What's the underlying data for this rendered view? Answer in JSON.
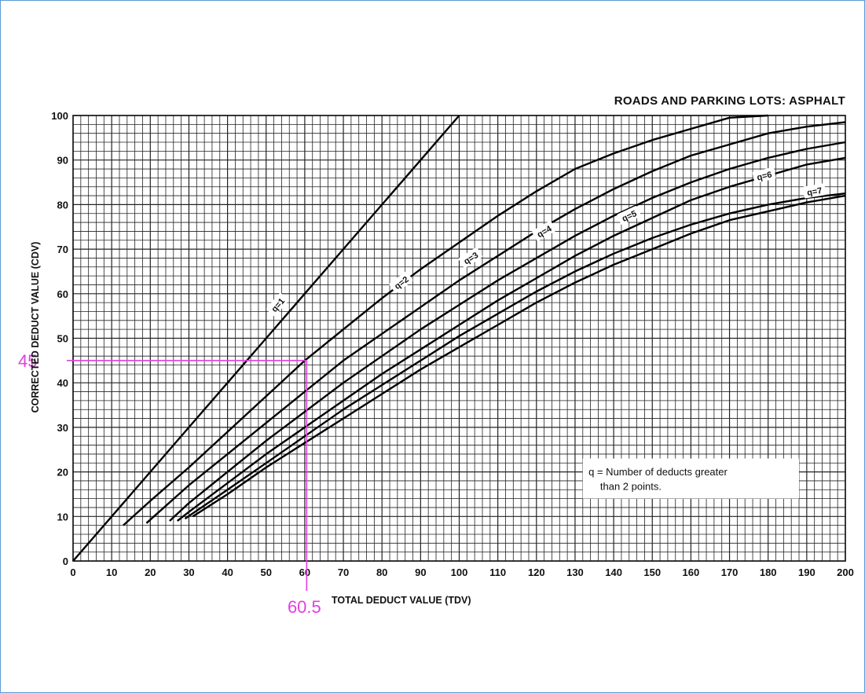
{
  "chart_data": {
    "type": "line",
    "title": "ROADS AND PARKING LOTS:  ASPHALT",
    "xlabel": "TOTAL DEDUCT VALUE (TDV)",
    "ylabel": "CORRECTED DEDUCT VALUE (CDV)",
    "xlim": [
      0,
      200
    ],
    "ylim": [
      0,
      100
    ],
    "xticks": [
      "0",
      "10",
      "20",
      "30",
      "40",
      "50",
      "60",
      "70",
      "80",
      "90",
      "100",
      "110",
      "120",
      "130",
      "140",
      "150",
      "160",
      "170",
      "180",
      "190",
      "200"
    ],
    "yticks": [
      "0",
      "10",
      "20",
      "30",
      "40",
      "50",
      "60",
      "70",
      "80",
      "90",
      "100"
    ],
    "grid": true,
    "legend": {
      "placement": "bottom-right",
      "line1": "q = Number of deducts greater",
      "line2": "than 2 points."
    },
    "series": [
      {
        "name": "q=1",
        "x": [
          0,
          10,
          20,
          30,
          40,
          50,
          60,
          70,
          80,
          90,
          100
        ],
        "y": [
          0,
          10,
          20,
          30,
          40,
          50,
          60,
          70,
          80,
          90,
          100
        ]
      },
      {
        "name": "q=2",
        "x": [
          13,
          20,
          30,
          40,
          50,
          60,
          70,
          80,
          90,
          100,
          110,
          120,
          130,
          140,
          150,
          160,
          170,
          180
        ],
        "y": [
          8,
          13.5,
          21,
          29,
          37,
          45,
          52,
          59,
          65.5,
          71.5,
          77.5,
          83,
          88,
          91.5,
          94.5,
          97,
          99.5,
          101.5
        ]
      },
      {
        "name": "q=3",
        "x": [
          19,
          30,
          40,
          50,
          60,
          70,
          80,
          90,
          100,
          110,
          120,
          130,
          140,
          150,
          160,
          170,
          180,
          190,
          200
        ],
        "y": [
          8.5,
          17,
          24,
          31,
          38,
          45,
          51,
          57,
          63,
          68.5,
          74,
          79,
          83.5,
          87.5,
          91,
          93.5,
          96,
          97.5,
          98.5
        ]
      },
      {
        "name": "q=4",
        "x": [
          25,
          30,
          40,
          50,
          60,
          70,
          80,
          90,
          100,
          110,
          120,
          130,
          140,
          150,
          160,
          170,
          180,
          190,
          200
        ],
        "y": [
          9,
          13,
          20,
          27,
          33.5,
          40,
          46,
          52,
          57.5,
          63,
          68,
          73,
          77.5,
          81.5,
          85,
          88,
          90.5,
          92.5,
          94
        ]
      },
      {
        "name": "q=5",
        "x": [
          27,
          30,
          40,
          50,
          60,
          70,
          80,
          90,
          100,
          110,
          120,
          130,
          140,
          150,
          160,
          170,
          180,
          190,
          200
        ],
        "y": [
          9,
          11,
          17.5,
          24,
          30,
          36,
          42,
          47.5,
          53,
          58.5,
          63.5,
          68.5,
          73,
          77,
          81,
          84,
          86.5,
          89,
          90.5
        ]
      },
      {
        "name": "q=6",
        "x": [
          29,
          40,
          50,
          60,
          70,
          80,
          90,
          100,
          110,
          120,
          130,
          140,
          150,
          160,
          170,
          180,
          190,
          200
        ],
        "y": [
          9.5,
          16,
          22,
          28,
          34,
          39.5,
          45,
          50.5,
          55.5,
          60.5,
          65,
          69,
          72.5,
          75.5,
          78,
          80,
          81.5,
          82.5
        ]
      },
      {
        "name": "q=7",
        "x": [
          31,
          40,
          50,
          60,
          70,
          80,
          90,
          100,
          110,
          120,
          130,
          140,
          150,
          160,
          170,
          180,
          190,
          200
        ],
        "y": [
          10,
          15,
          21,
          26.5,
          32,
          37.5,
          43,
          48,
          53,
          58,
          62.5,
          66.5,
          70,
          73.5,
          76.5,
          78.5,
          80.5,
          82
        ]
      }
    ],
    "curve_labels": [
      {
        "text": "q=1",
        "x": 53,
        "y": 57.5
      },
      {
        "text": "q=2",
        "x": 85,
        "y": 62.5
      },
      {
        "text": "q=3",
        "x": 103,
        "y": 68
      },
      {
        "text": "q=4",
        "x": 122,
        "y": 74
      },
      {
        "text": "q=5",
        "x": 144,
        "y": 77.5
      },
      {
        "text": "q=6",
        "x": 179,
        "y": 86.5
      },
      {
        "text": "q=7",
        "x": 192,
        "y": 83
      }
    ],
    "annotation": {
      "color": "#e040e0",
      "x": 60.5,
      "y": 45,
      "x_label": "60.5",
      "y_label": "45"
    }
  }
}
